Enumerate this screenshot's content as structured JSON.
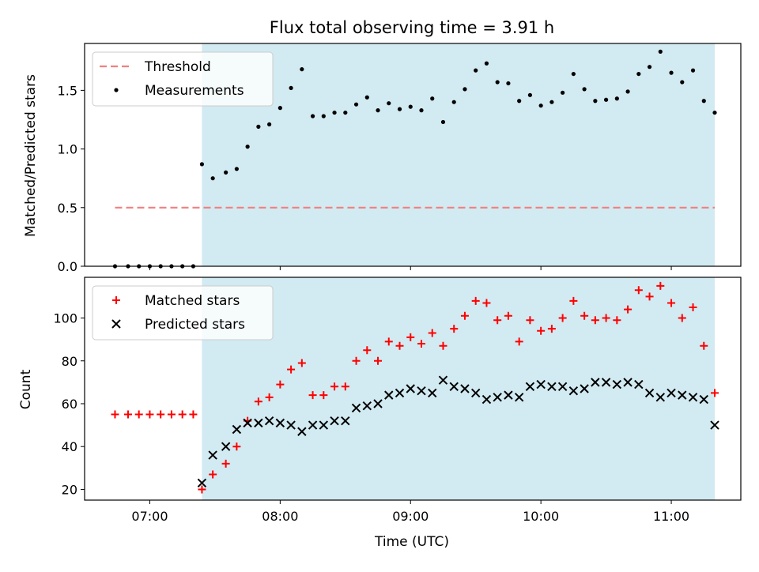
{
  "chart_data": {
    "type": "scatter",
    "title": "Flux total observing time = 3.91 h",
    "xlabel": "Time (UTC)",
    "x_ticks": [
      "07:00",
      "08:00",
      "09:00",
      "10:00",
      "11:00"
    ],
    "x_tick_values": [
      "07:00",
      "08:00",
      "09:00",
      "10:00",
      "11:00"
    ],
    "xlim": [
      "06:30",
      "11:32"
    ],
    "shaded_region": {
      "start": "07:24",
      "end": "11:20",
      "color": "#add8e6"
    },
    "times": [
      "06:44",
      "06:50",
      "06:55",
      "07:00",
      "07:05",
      "07:10",
      "07:15",
      "07:20",
      "07:24",
      "07:29",
      "07:35",
      "07:40",
      "07:45",
      "07:50",
      "07:55",
      "08:00",
      "08:05",
      "08:10",
      "08:15",
      "08:20",
      "08:25",
      "08:30",
      "08:35",
      "08:40",
      "08:45",
      "08:50",
      "08:55",
      "09:00",
      "09:05",
      "09:10",
      "09:15",
      "09:20",
      "09:25",
      "09:30",
      "09:35",
      "09:40",
      "09:45",
      "09:50",
      "09:55",
      "10:00",
      "10:05",
      "10:10",
      "10:15",
      "10:20",
      "10:25",
      "10:30",
      "10:35",
      "10:40",
      "10:45",
      "10:50",
      "10:55",
      "11:00",
      "11:05",
      "11:10",
      "11:15",
      "11:20"
    ],
    "panels": [
      {
        "ylabel": "Matched/Predicted stars",
        "ylim": [
          0,
          1.9
        ],
        "yticks": [
          "0.0",
          "0.5",
          "1.0",
          "1.5"
        ],
        "ytick_values": [
          0,
          0.5,
          1.0,
          1.5
        ],
        "legend_position": "upper-left",
        "threshold": {
          "name": "Threshold",
          "value": 0.5,
          "x_start": "06:44",
          "x_end": "11:20",
          "color": "#f08080"
        },
        "series": [
          {
            "name": "Measurements",
            "marker": "dot",
            "color": "#000000",
            "values": [
              0,
              0,
              0,
              0,
              0,
              0,
              0,
              0,
              0.87,
              0.75,
              0.8,
              0.83,
              1.02,
              1.19,
              1.21,
              1.35,
              1.52,
              1.68,
              1.28,
              1.28,
              1.31,
              1.31,
              1.38,
              1.44,
              1.33,
              1.39,
              1.34,
              1.36,
              1.33,
              1.43,
              1.23,
              1.4,
              1.51,
              1.67,
              1.73,
              1.57,
              1.56,
              1.41,
              1.46,
              1.37,
              1.4,
              1.48,
              1.64,
              1.51,
              1.41,
              1.42,
              1.43,
              1.49,
              1.64,
              1.7,
              1.83,
              1.65,
              1.57,
              1.67,
              1.41,
              1.31
            ]
          }
        ]
      },
      {
        "ylabel": "Count",
        "ylim": [
          15,
          119
        ],
        "yticks": [
          "20",
          "40",
          "60",
          "80",
          "100"
        ],
        "ytick_values": [
          20,
          40,
          60,
          80,
          100
        ],
        "legend_position": "upper-left",
        "series": [
          {
            "name": "Matched stars",
            "marker": "plus",
            "color": "#ff0000",
            "values": [
              55,
              55,
              55,
              55,
              55,
              55,
              55,
              55,
              20,
              27,
              32,
              40,
              52,
              61,
              63,
              69,
              76,
              79,
              64,
              64,
              68,
              68,
              80,
              85,
              80,
              89,
              87,
              91,
              88,
              93,
              87,
              95,
              101,
              108,
              107,
              99,
              101,
              89,
              99,
              94,
              95,
              100,
              108,
              101,
              99,
              100,
              99,
              104,
              113,
              110,
              115,
              107,
              100,
              105,
              87,
              65
            ]
          },
          {
            "name": "Predicted stars",
            "marker": "x",
            "color": "#000000",
            "values": [
              null,
              null,
              null,
              null,
              null,
              null,
              null,
              null,
              23,
              36,
              40,
              48,
              51,
              51,
              52,
              51,
              50,
              47,
              50,
              50,
              52,
              52,
              58,
              59,
              60,
              64,
              65,
              67,
              66,
              65,
              71,
              68,
              67,
              65,
              62,
              63,
              64,
              63,
              68,
              69,
              68,
              68,
              66,
              67,
              70,
              70,
              69,
              70,
              69,
              65,
              63,
              65,
              64,
              63,
              62,
              50
            ]
          }
        ]
      }
    ]
  }
}
